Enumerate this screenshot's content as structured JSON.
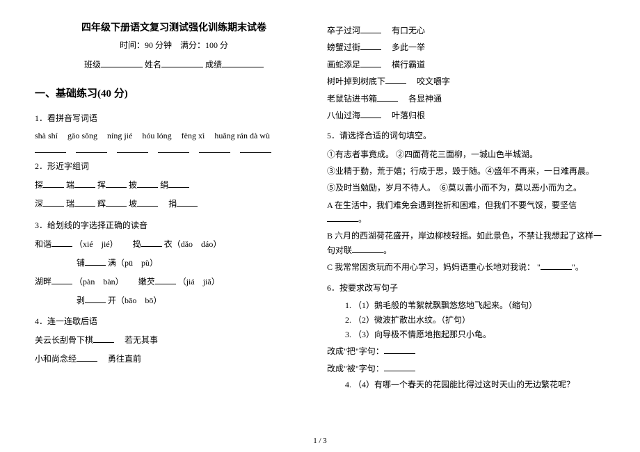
{
  "header": {
    "title": "四年级下册语文复习测试强化训练期末试卷",
    "timeScore": "时间：90 分钟　满分：100 分",
    "class": "班级",
    "name": "姓名",
    "score": "成绩"
  },
  "section1": {
    "heading": "一、基础练习(40 分)",
    "q1": {
      "label": "1．看拼音写词语",
      "pinyin": [
        "shà shí",
        "gāo sǒng",
        "níng jié",
        "hóu lóng",
        "fèng xì",
        "huǎng rán dà wù"
      ]
    },
    "q2": {
      "label": "2．形近字组词",
      "l1a": "探",
      "l1b": "端",
      "l1c": "挥",
      "l1d": "披",
      "l1e": "绢",
      "l2a": "深",
      "l2b": "瑞",
      "l2c": "辉",
      "l2d": "坡",
      "l2e": "捐"
    },
    "q3": {
      "label": "3．给划线的字选择正确的读音",
      "r1a": "和谐",
      "r1a_py": "（xié　jié）",
      "r1b": "捣",
      "r1b_suf": "衣（dǎo　dáo）",
      "r2a": "铺",
      "r2a_suf": "满（pū　pù）",
      "r3a": "湖畔",
      "r3a_py": "（pàn　bàn）",
      "r3b": "嫩芡",
      "r3b_py": "（jiá　jiǎ）",
      "r4a": "剥",
      "r4a_suf": "开（bāo　bō）"
    },
    "q4": {
      "label": "4．连一连歇后语",
      "a1": "关云长刮骨下棋",
      "b1": "若无其事",
      "a2": "小和尚念经",
      "b2": "勇往直前"
    }
  },
  "rightTop": {
    "a1": "卒子过河",
    "b1": "有口无心",
    "a2": "螃蟹过街",
    "b2": "多此一举",
    "a3": "画蛇添足",
    "b3": "横行霸道",
    "a4": "树叶掉到树底下",
    "b4": "咬文嚼字",
    "a5": "老鼠钻进书箱",
    "b5": "各显神通",
    "a6": "八仙过海",
    "b6": "叶落归根"
  },
  "q5": {
    "label": "5．请选择合适的词句填空。",
    "o1": "①有志者事竟成。 ②四面荷花三面柳，一城山色半城湖。",
    "o2": "③业精于勤，荒于嬉；行成于思，毁于随。④盛年不再来，一日难再晨。",
    "o3": "⑤及时当勉励，岁月不待人。　⑥莫以善小而不为，莫以恶小而为之。",
    "A": "A 在生活中，我们难免会遇到挫折和困难，但我们不要气馁，要坚信",
    "B": "B 六月的西湖荷花盛开，岸边柳枝轻摇。如此景色，不禁让我想起了这样一句对联",
    "C1": "C 我常常因贪玩而不用心学习，妈妈语重心长地对我说：",
    "C2": "\"",
    "C3": "\"。"
  },
  "q6": {
    "label": "6．按要求改写句子",
    "i1": "（1）鹅毛般的苇絮就飘飘悠悠地飞起来。（缩句）",
    "i2": "（2）微波扩散出水纹。（扩句）",
    "i3": "（3）向导极不情愿地抱起那只小龟。",
    "ba": "改成\"把\"字句：",
    "bei": "改成\"被\"字句：",
    "i4": "（4）有哪一个春天的花园能比得过这时天山的无边繁花呢？"
  },
  "footer": "1 / 3"
}
